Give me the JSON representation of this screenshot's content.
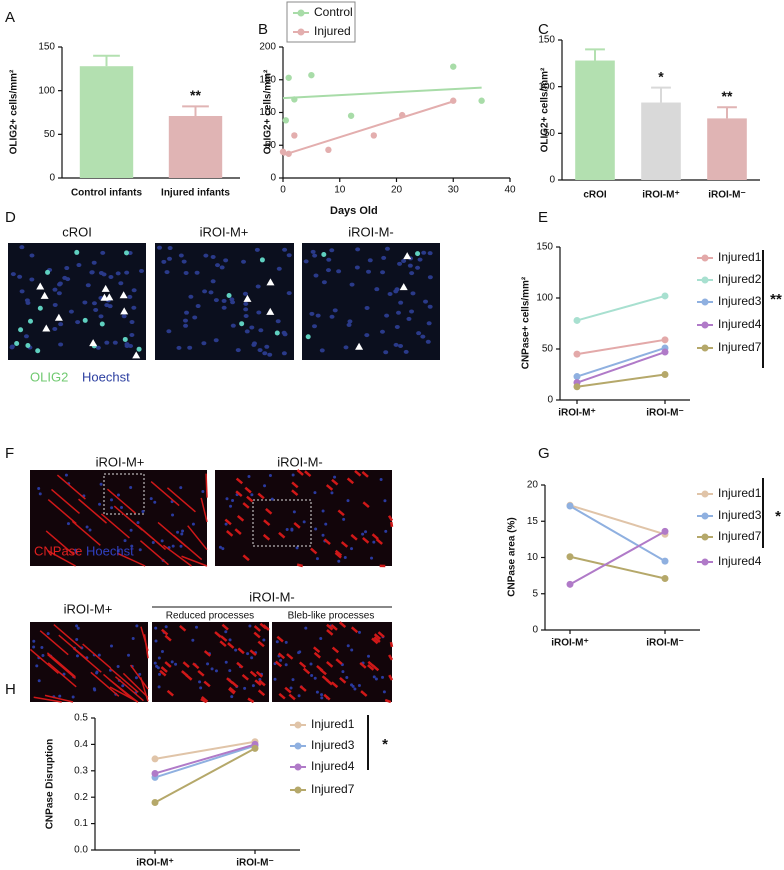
{
  "panel_labels": [
    "A",
    "B",
    "C",
    "D",
    "E",
    "F",
    "G",
    "H"
  ],
  "panel_d": {
    "headers": [
      "cROI",
      "iROI-M+",
      "iROI-M-"
    ],
    "stain": [
      "OLIG2",
      "Hoechst"
    ]
  },
  "panel_f": {
    "headers": [
      "iROI-M+",
      "iROI-M-"
    ],
    "stain": [
      "CNPase",
      "Hoechst"
    ],
    "zoom_headers": [
      "iROI-M+",
      "iROI-M-"
    ],
    "zoom_subheaders": [
      "Reduced processes",
      "Bleb-like processes"
    ]
  },
  "chart_data": [
    {
      "type": "bar",
      "ylabel": "OLIG2+ cells/mm²",
      "categories": [
        "Control infants",
        "Injured infants"
      ],
      "values": [
        128,
        71
      ],
      "errors": [
        12,
        11
      ],
      "colors": [
        "#b3e0b0",
        "#e0b4b4"
      ],
      "ylim": [
        0,
        150
      ],
      "yticks": [
        0,
        50,
        100,
        150
      ],
      "annotations": [
        "**"
      ]
    },
    {
      "type": "scatter",
      "ylabel": "OLIG2+ cells/mm²",
      "xlabel": "Days Old",
      "xlim": [
        0,
        40
      ],
      "xticks": [
        0,
        10,
        20,
        30,
        40
      ],
      "ylim": [
        0,
        200
      ],
      "yticks": [
        0,
        50,
        100,
        150,
        200
      ],
      "series": [
        {
          "name": "Control",
          "color": "#a8dca8",
          "x": [
            0.5,
            1,
            2,
            5,
            12,
            30,
            35
          ],
          "values": [
            88,
            153,
            120,
            157,
            95,
            170,
            118
          ],
          "fit": {
            "x": [
              0,
              35
            ],
            "values": [
              122,
              138
            ]
          }
        },
        {
          "name": "Injured",
          "color": "#e3aeae",
          "x": [
            0,
            1,
            2,
            8,
            16,
            21,
            30
          ],
          "values": [
            40,
            37,
            65,
            43,
            65,
            96,
            118
          ],
          "fit": {
            "x": [
              0,
              30
            ],
            "values": [
              35,
              117
            ]
          }
        }
      ]
    },
    {
      "type": "bar",
      "ylabel": "OLIG2+ cells/mm²",
      "categories": [
        "cROI",
        "iROI-M⁺",
        "iROI-M⁻"
      ],
      "values": [
        128,
        83,
        66
      ],
      "errors": [
        12,
        16,
        12
      ],
      "colors": [
        "#b3e0b0",
        "#d9d9d9",
        "#e0b4b4"
      ],
      "ylim": [
        0,
        150
      ],
      "yticks": [
        0,
        50,
        100,
        150
      ],
      "annotations": [
        "*",
        "**"
      ]
    },
    {
      "type": "line",
      "ylabel": "CNPase+ cells/mm²",
      "categories": [
        "iROI-M⁺",
        "iROI-M⁻"
      ],
      "ylim": [
        0,
        150
      ],
      "yticks": [
        0,
        50,
        100,
        150
      ],
      "series": [
        {
          "name": "Injured1",
          "color": "#e3a9a9",
          "values": [
            45,
            59
          ]
        },
        {
          "name": "Injured2",
          "color": "#a8e0d0",
          "values": [
            78,
            102
          ]
        },
        {
          "name": "Injured3",
          "color": "#8fb0e0",
          "values": [
            23,
            51
          ]
        },
        {
          "name": "Injured4",
          "color": "#b07ac8",
          "values": [
            17,
            47
          ]
        },
        {
          "name": "Injured7",
          "color": "#b5a86a",
          "values": [
            13,
            25
          ]
        }
      ],
      "annotations": [
        "**"
      ]
    },
    {
      "type": "line",
      "ylabel": "CNPase area (%)",
      "categories": [
        "iROI-M⁺",
        "iROI-M⁻"
      ],
      "ylim": [
        0,
        20
      ],
      "yticks": [
        0,
        5,
        10,
        15,
        20
      ],
      "series": [
        {
          "name": "Injured1",
          "color": "#e0c4a8",
          "values": [
            17.2,
            13.2
          ]
        },
        {
          "name": "Injured3",
          "color": "#8fb0e0",
          "values": [
            17.1,
            9.5
          ]
        },
        {
          "name": "Injured7",
          "color": "#b5a86a",
          "values": [
            10.1,
            7.1
          ]
        },
        {
          "name": "Injured4",
          "color": "#b07ac8",
          "values": [
            6.3,
            13.6
          ]
        }
      ],
      "annotations": [
        "*"
      ]
    },
    {
      "type": "line",
      "ylabel": "CNPase Disruption",
      "categories": [
        "iROI-M⁺",
        "iROI-M⁻"
      ],
      "ylim": [
        0,
        0.5
      ],
      "yticks": [
        {
          "value": 0,
          "label": "0.0"
        },
        0.1,
        0.2,
        0.3,
        0.4,
        0.5
      ],
      "series": [
        {
          "name": "Injured1",
          "color": "#e0c4a8",
          "values": [
            0.345,
            0.41
          ]
        },
        {
          "name": "Injured3",
          "color": "#8fb0e0",
          "values": [
            0.275,
            0.395
          ]
        },
        {
          "name": "Injured4",
          "color": "#b07ac8",
          "values": [
            0.29,
            0.4
          ]
        },
        {
          "name": "Injured7",
          "color": "#b5a86a",
          "values": [
            0.18,
            0.385
          ]
        }
      ],
      "annotations": [
        "*"
      ]
    }
  ]
}
